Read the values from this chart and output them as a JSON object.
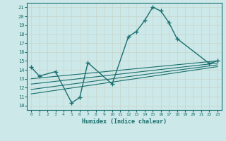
{
  "xlabel": "Humidex (Indice chaleur)",
  "bg_color": "#cce8e8",
  "grid_color": "#b8d8d8",
  "line_color": "#1a6e6e",
  "xlim": [
    -0.5,
    23.5
  ],
  "ylim": [
    9.5,
    21.5
  ],
  "xticks": [
    0,
    1,
    2,
    3,
    4,
    5,
    6,
    7,
    8,
    9,
    10,
    11,
    12,
    13,
    14,
    15,
    16,
    17,
    18,
    19,
    20,
    21,
    22,
    23
  ],
  "yticks": [
    10,
    11,
    12,
    13,
    14,
    15,
    16,
    17,
    18,
    19,
    20,
    21
  ],
  "main_curve_x": [
    0,
    1,
    3,
    5,
    6,
    7,
    10,
    12,
    13,
    14,
    15,
    16,
    17,
    18,
    22,
    23
  ],
  "main_curve_y": [
    14.3,
    13.3,
    13.8,
    10.3,
    10.9,
    14.8,
    12.4,
    17.7,
    18.3,
    19.5,
    21.0,
    20.6,
    19.3,
    17.5,
    14.7,
    15.0
  ],
  "lines": [
    {
      "x0": 0,
      "y0": 13.0,
      "x1": 23,
      "y1": 15.0
    },
    {
      "x0": 0,
      "y0": 12.4,
      "x1": 23,
      "y1": 14.75
    },
    {
      "x0": 0,
      "y0": 11.8,
      "x1": 23,
      "y1": 14.55
    },
    {
      "x0": 0,
      "y0": 11.3,
      "x1": 23,
      "y1": 14.35
    }
  ]
}
